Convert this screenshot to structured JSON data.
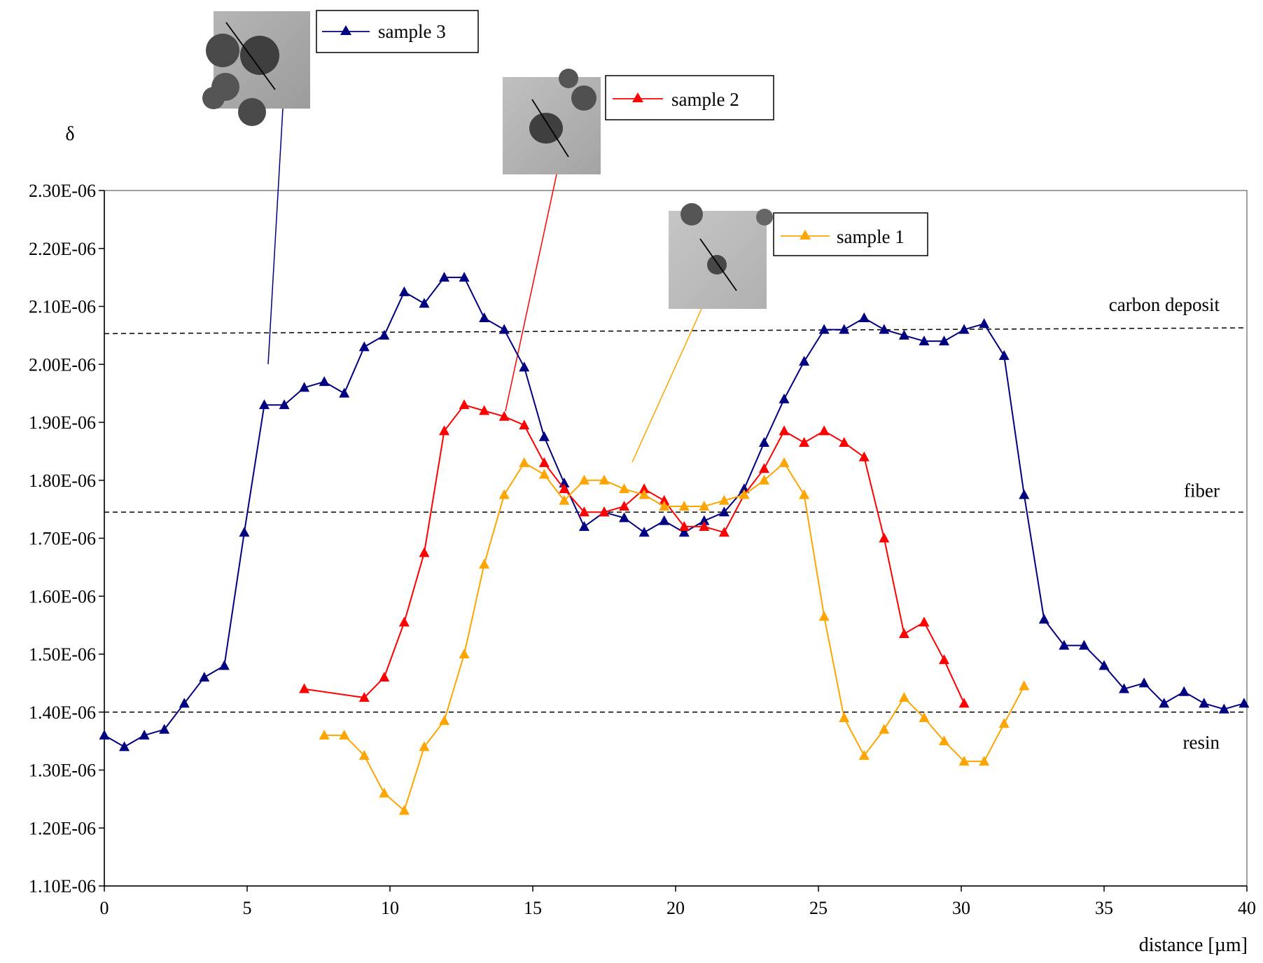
{
  "chart_data": {
    "type": "line",
    "title": "",
    "xlabel": "distance [µm]",
    "ylabel": "δ",
    "xlim": [
      0,
      40
    ],
    "ylim": [
      1.1e-06,
      2.3e-06
    ],
    "x_ticks": [
      0,
      5,
      10,
      15,
      20,
      25,
      30,
      35,
      40
    ],
    "x_tick_labels": [
      "0",
      "5",
      "10",
      "15",
      "20",
      "25",
      "30",
      "35",
      "40"
    ],
    "y_ticks": [
      1.1e-06,
      1.2e-06,
      1.3e-06,
      1.4e-06,
      1.5e-06,
      1.6e-06,
      1.7e-06,
      1.8e-06,
      1.9e-06,
      2e-06,
      2.1e-06,
      2.2e-06,
      2.3e-06
    ],
    "y_tick_labels": [
      "1.10E-06",
      "1.20E-06",
      "1.30E-06",
      "1.40E-06",
      "1.50E-06",
      "1.60E-06",
      "1.70E-06",
      "1.80E-06",
      "1.90E-06",
      "2.00E-06",
      "2.10E-06",
      "2.20E-06",
      "2.30E-06"
    ],
    "grid": false,
    "legend_placement": "separate boxes above plot, each attached to an inset image",
    "reference_lines": [
      {
        "label": "carbon deposit",
        "y_start": 2.053e-06,
        "y_end": 2.063e-06,
        "style": "dashed"
      },
      {
        "label": "fiber",
        "y_start": 1.745e-06,
        "y_end": 1.745e-06,
        "style": "dashed"
      },
      {
        "label": "resin",
        "y_start": 1.4e-06,
        "y_end": 1.4e-06,
        "style": "dashed"
      }
    ],
    "series": [
      {
        "name": "sample 3",
        "color": "#000080",
        "marker": "triangle",
        "x": [
          0,
          0.7,
          1.4,
          2.1,
          2.8,
          3.5,
          4.2,
          4.9,
          5.6,
          6.3,
          7.0,
          7.7,
          8.4,
          9.1,
          9.8,
          10.5,
          11.2,
          11.9,
          12.6,
          13.3,
          14.0,
          14.7,
          15.4,
          16.1,
          16.8,
          17.5,
          18.2,
          18.9,
          19.6,
          20.3,
          21.0,
          21.7,
          22.4,
          23.1,
          23.8,
          24.5,
          25.2,
          25.9,
          26.6,
          27.3,
          28.0,
          28.7,
          29.4,
          30.1,
          30.8,
          31.5,
          32.2,
          32.9,
          33.6,
          34.3,
          35.0,
          35.7,
          36.4,
          37.1,
          37.8,
          38.5,
          39.2,
          39.9
        ],
        "y": [
          1.36e-06,
          1.34e-06,
          1.36e-06,
          1.37e-06,
          1.415e-06,
          1.46e-06,
          1.48e-06,
          1.71e-06,
          1.93e-06,
          1.93e-06,
          1.96e-06,
          1.97e-06,
          1.95e-06,
          2.03e-06,
          2.05e-06,
          2.125e-06,
          2.105e-06,
          2.15e-06,
          2.15e-06,
          2.08e-06,
          2.06e-06,
          1.995e-06,
          1.875e-06,
          1.795e-06,
          1.72e-06,
          1.745e-06,
          1.735e-06,
          1.71e-06,
          1.73e-06,
          1.71e-06,
          1.73e-06,
          1.745e-06,
          1.785e-06,
          1.865e-06,
          1.94e-06,
          2.005e-06,
          2.06e-06,
          2.06e-06,
          2.08e-06,
          2.06e-06,
          2.05e-06,
          2.04e-06,
          2.04e-06,
          2.06e-06,
          2.07e-06,
          2.015e-06,
          1.775e-06,
          1.56e-06,
          1.515e-06,
          1.515e-06,
          1.48e-06,
          1.44e-06,
          1.45e-06,
          1.415e-06,
          1.435e-06,
          1.415e-06,
          1.405e-06,
          1.415e-06
        ]
      },
      {
        "name": "sample 2",
        "color": "#FF0000",
        "marker": "triangle",
        "x": [
          7.0,
          9.1,
          9.8,
          10.5,
          11.2,
          11.9,
          12.6,
          13.3,
          14.0,
          14.7,
          15.4,
          16.1,
          16.8,
          17.5,
          18.2,
          18.9,
          19.6,
          20.3,
          21.0,
          21.7,
          22.4,
          23.1,
          23.8,
          24.5,
          25.2,
          25.9,
          26.6,
          27.3,
          28.0,
          28.7,
          29.4,
          30.1
        ],
        "y": [
          1.44e-06,
          1.425e-06,
          1.46e-06,
          1.555e-06,
          1.675e-06,
          1.885e-06,
          1.93e-06,
          1.92e-06,
          1.91e-06,
          1.895e-06,
          1.83e-06,
          1.785e-06,
          1.745e-06,
          1.745e-06,
          1.755e-06,
          1.785e-06,
          1.765e-06,
          1.72e-06,
          1.72e-06,
          1.71e-06,
          1.775e-06,
          1.82e-06,
          1.885e-06,
          1.865e-06,
          1.885e-06,
          1.865e-06,
          1.84e-06,
          1.7e-06,
          1.535e-06,
          1.555e-06,
          1.49e-06,
          1.415e-06
        ]
      },
      {
        "name": "sample 1",
        "color": "#FFA500",
        "marker": "triangle",
        "x": [
          7.7,
          8.4,
          9.1,
          9.8,
          10.5,
          11.2,
          11.9,
          12.6,
          13.3,
          14.0,
          14.7,
          15.4,
          16.1,
          16.8,
          17.5,
          18.2,
          18.9,
          19.6,
          20.3,
          21.0,
          21.7,
          22.4,
          23.1,
          23.8,
          24.5,
          25.2,
          25.9,
          26.6,
          27.3,
          28.0,
          28.7,
          29.4,
          30.1,
          30.8,
          31.5,
          32.2
        ],
        "y": [
          1.36e-06,
          1.36e-06,
          1.325e-06,
          1.26e-06,
          1.23e-06,
          1.34e-06,
          1.385e-06,
          1.5e-06,
          1.655e-06,
          1.775e-06,
          1.83e-06,
          1.81e-06,
          1.765e-06,
          1.8e-06,
          1.8e-06,
          1.785e-06,
          1.775e-06,
          1.755e-06,
          1.755e-06,
          1.755e-06,
          1.765e-06,
          1.775e-06,
          1.8e-06,
          1.83e-06,
          1.775e-06,
          1.565e-06,
          1.39e-06,
          1.325e-06,
          1.37e-06,
          1.425e-06,
          1.39e-06,
          1.35e-06,
          1.315e-06,
          1.315e-06,
          1.38e-06,
          1.445e-06
        ]
      }
    ]
  }
}
